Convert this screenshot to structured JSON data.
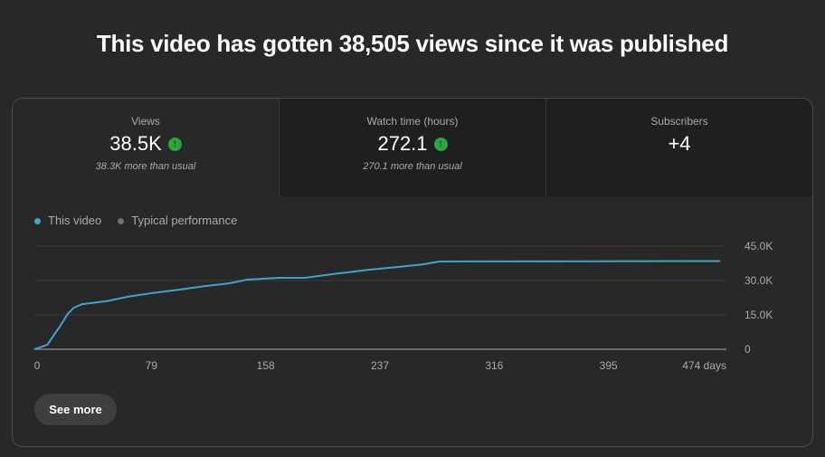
{
  "headline": "This video has gotten 38,505 views since it was published",
  "stats": [
    {
      "label": "Views",
      "value": "38.5K",
      "trend": "up",
      "note": "38.3K more than usual"
    },
    {
      "label": "Watch time (hours)",
      "value": "272.1",
      "trend": "up",
      "note": "270.1 more than usual"
    },
    {
      "label": "Subscribers",
      "value": "+4",
      "trend": "",
      "note": ""
    }
  ],
  "legend": [
    {
      "label": "This video",
      "color": "#3ea6ca"
    },
    {
      "label": "Typical performance",
      "color": "#717171"
    }
  ],
  "see_more": "See more",
  "chart_data": {
    "type": "line",
    "xlim": [
      0,
      474
    ],
    "ylim": [
      0,
      45000
    ],
    "x_ticks": [
      "0",
      "79",
      "158",
      "237",
      "316",
      "395",
      "474 days"
    ],
    "x_tick_values": [
      0,
      79,
      158,
      237,
      316,
      395,
      474
    ],
    "y_ticks": [
      "0",
      "15.0K",
      "30.0K",
      "45.0K"
    ],
    "y_tick_values": [
      0,
      15000,
      30000,
      45000
    ],
    "grid": true,
    "legend_position": "top-left",
    "series": [
      {
        "name": "This video",
        "color": "#3ea6ca",
        "x": [
          0,
          2,
          9,
          14,
          18,
          23,
          27,
          33,
          50,
          65,
          81,
          100,
          118,
          135,
          147,
          169,
          187,
          209,
          231,
          253,
          268,
          280,
          474
        ],
        "y": [
          0,
          400,
          2000,
          6700,
          10300,
          15400,
          18000,
          19700,
          21000,
          23000,
          24500,
          26000,
          27600,
          28800,
          30400,
          31200,
          31200,
          33000,
          34700,
          36000,
          37000,
          38300,
          38500
        ]
      }
    ]
  }
}
